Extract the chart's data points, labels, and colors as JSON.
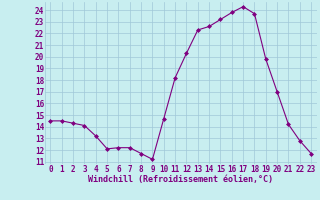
{
  "x": [
    0,
    1,
    2,
    3,
    4,
    5,
    6,
    7,
    8,
    9,
    10,
    11,
    12,
    13,
    14,
    15,
    16,
    17,
    18,
    19,
    20,
    21,
    22,
    23
  ],
  "y": [
    14.5,
    14.5,
    14.3,
    14.1,
    13.2,
    12.1,
    12.2,
    12.2,
    11.7,
    11.2,
    14.7,
    18.2,
    20.3,
    22.3,
    22.6,
    23.2,
    23.8,
    24.3,
    23.7,
    19.8,
    17.0,
    14.2,
    12.8,
    11.7
  ],
  "line_color": "#800080",
  "marker_color": "#800080",
  "bg_color": "#c8eef0",
  "grid_color": "#a0c8d8",
  "xlabel": "Windchill (Refroidissement éolien,°C)",
  "ylim": [
    10.8,
    24.7
  ],
  "xlim": [
    -0.5,
    23.5
  ],
  "yticks": [
    11,
    12,
    13,
    14,
    15,
    16,
    17,
    18,
    19,
    20,
    21,
    22,
    23,
    24
  ],
  "xticks": [
    0,
    1,
    2,
    3,
    4,
    5,
    6,
    7,
    8,
    9,
    10,
    11,
    12,
    13,
    14,
    15,
    16,
    17,
    18,
    19,
    20,
    21,
    22,
    23
  ],
  "font_color": "#800080",
  "tick_font_size": 5.5,
  "label_font_size": 6.0
}
